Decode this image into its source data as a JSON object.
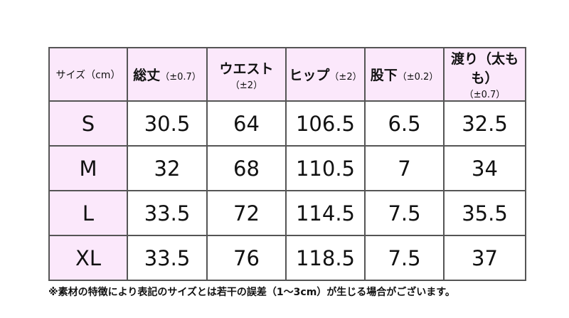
{
  "table": {
    "header": [
      {
        "main": "サイズ（cm）"
      },
      {
        "main": "総丈",
        "sub": "（±0.7）"
      },
      {
        "main": "ウエスト",
        "sub": "（±2）"
      },
      {
        "main": "ヒップ",
        "sub": "（±2）"
      },
      {
        "main": "股下",
        "sub": "（±0.2）"
      },
      {
        "main": "渡り（太もも）",
        "sub": "（±0.7）"
      }
    ],
    "rows": [
      [
        "S",
        "30.5",
        "64",
        "106.5",
        "6.5",
        "32.5"
      ],
      [
        "M",
        "32",
        "68",
        "110.5",
        "7",
        "34"
      ],
      [
        "L",
        "33.5",
        "72",
        "114.5",
        "7.5",
        "35.5"
      ],
      [
        "XL",
        "33.5",
        "76",
        "118.5",
        "7.5",
        "37"
      ]
    ]
  },
  "note": "※素材の特徴により表記のサイズとは若干の誤差（1～3cm）が生じる場合がございます。"
}
